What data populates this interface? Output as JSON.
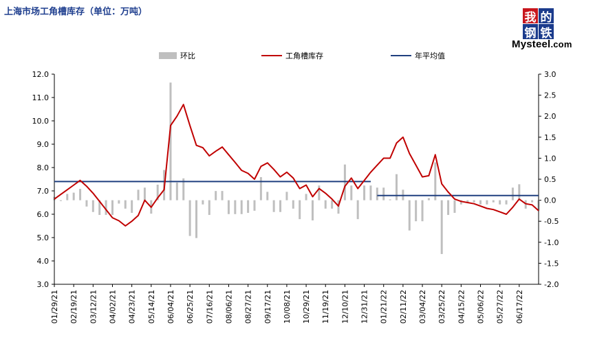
{
  "chart_data": {
    "type": "bar+line",
    "title": "上海市场工角槽库存（单位：万吨）",
    "legend": [
      "环比",
      "工角槽库存",
      "年平均值"
    ],
    "logo": {
      "chars": [
        "我",
        "的",
        "钢",
        "铁"
      ],
      "word": "Mysteel",
      "suffix": ".com"
    },
    "colors": {
      "bar": "#bfbfbf",
      "line": "#c00000",
      "avg": "#1f3f7f"
    },
    "left_axis": {
      "min": 3.0,
      "max": 12.0,
      "step": 1.0,
      "ticks": [
        "3.0",
        "4.0",
        "5.0",
        "6.0",
        "7.0",
        "8.0",
        "9.0",
        "10.0",
        "11.0",
        "12.0"
      ]
    },
    "right_axis": {
      "min": -2.0,
      "max": 3.0,
      "step": 0.5,
      "ticks": [
        "-2.0",
        "-1.5",
        "-1.0",
        "-0.5",
        "0.0",
        "0.5",
        "1.0",
        "1.5",
        "2.0",
        "2.5",
        "3.0"
      ]
    },
    "x_tick_labels": [
      {
        "i": 0,
        "label": "01/29/21"
      },
      {
        "i": 3,
        "label": "02/19/21"
      },
      {
        "i": 6,
        "label": "03/12/21"
      },
      {
        "i": 9,
        "label": "04/02/21"
      },
      {
        "i": 12,
        "label": "04/23/21"
      },
      {
        "i": 15,
        "label": "05/14/21"
      },
      {
        "i": 18,
        "label": "06/04/21"
      },
      {
        "i": 21,
        "label": "06/25/21"
      },
      {
        "i": 24,
        "label": "07/16/21"
      },
      {
        "i": 27,
        "label": "08/06/21"
      },
      {
        "i": 30,
        "label": "08/27/21"
      },
      {
        "i": 33,
        "label": "09/17/21"
      },
      {
        "i": 36,
        "label": "10/08/21"
      },
      {
        "i": 39,
        "label": "10/29/21"
      },
      {
        "i": 42,
        "label": "11/19/21"
      },
      {
        "i": 45,
        "label": "12/10/21"
      },
      {
        "i": 48,
        "label": "12/31/21"
      },
      {
        "i": 51,
        "label": "01/21/22"
      },
      {
        "i": 54,
        "label": "02/11/22"
      },
      {
        "i": 57,
        "label": "03/04/22"
      },
      {
        "i": 60,
        "label": "03/25/22"
      },
      {
        "i": 63,
        "label": "04/15/22"
      },
      {
        "i": 66,
        "label": "05/06/22"
      },
      {
        "i": 69,
        "label": "05/27/22"
      },
      {
        "i": 72,
        "label": "06/17/22"
      }
    ],
    "inventory": [
      6.65,
      6.85,
      7.05,
      7.25,
      7.45,
      7.2,
      6.9,
      6.55,
      6.2,
      5.85,
      5.72,
      5.5,
      5.7,
      5.95,
      6.6,
      6.3,
      6.7,
      7.05,
      9.8,
      10.2,
      10.7,
      9.8,
      8.95,
      8.85,
      8.5,
      8.7,
      8.88,
      8.55,
      8.22,
      7.88,
      7.75,
      7.5,
      8.05,
      8.2,
      7.92,
      7.6,
      7.8,
      7.55,
      7.1,
      7.25,
      6.75,
      7.1,
      6.9,
      6.65,
      6.35,
      7.2,
      7.55,
      7.1,
      7.45,
      7.8,
      8.1,
      8.4,
      8.4,
      9.05,
      9.3,
      8.6,
      8.1,
      7.6,
      7.65,
      8.55,
      7.3,
      6.95,
      6.65,
      6.55,
      6.5,
      6.45,
      6.35,
      6.25,
      6.2,
      6.1,
      6.0,
      6.3,
      6.65,
      6.45,
      6.4,
      6.15
    ],
    "change": [
      0.08,
      -0.02,
      0.15,
      0.18,
      0.27,
      -0.15,
      -0.28,
      -0.35,
      -0.35,
      -0.35,
      -0.08,
      -0.2,
      -0.3,
      0.25,
      0.3,
      -0.32,
      0.37,
      0.72,
      2.8,
      0.42,
      0.52,
      -0.85,
      -0.9,
      -0.1,
      -0.35,
      0.22,
      0.22,
      -0.33,
      -0.33,
      -0.33,
      -0.3,
      -0.25,
      0.55,
      0.2,
      -0.28,
      -0.28,
      0.2,
      -0.2,
      -0.45,
      0.15,
      -0.48,
      0.35,
      -0.2,
      -0.2,
      -0.32,
      0.85,
      0.35,
      -0.45,
      0.35,
      0.35,
      0.3,
      0.3,
      0.02,
      0.62,
      0.25,
      -0.72,
      -0.5,
      -0.5,
      0.05,
      0.9,
      -1.28,
      -0.35,
      -0.3,
      -0.1,
      -0.05,
      -0.05,
      -0.1,
      -0.1,
      -0.05,
      -0.1,
      -0.1,
      0.3,
      0.38,
      -0.2,
      -0.05,
      -0.25
    ],
    "avg_2021": 7.4,
    "avg_2022": 6.8,
    "avg_2021_range": [
      0,
      49
    ],
    "avg_2022_range": [
      50,
      75
    ]
  }
}
